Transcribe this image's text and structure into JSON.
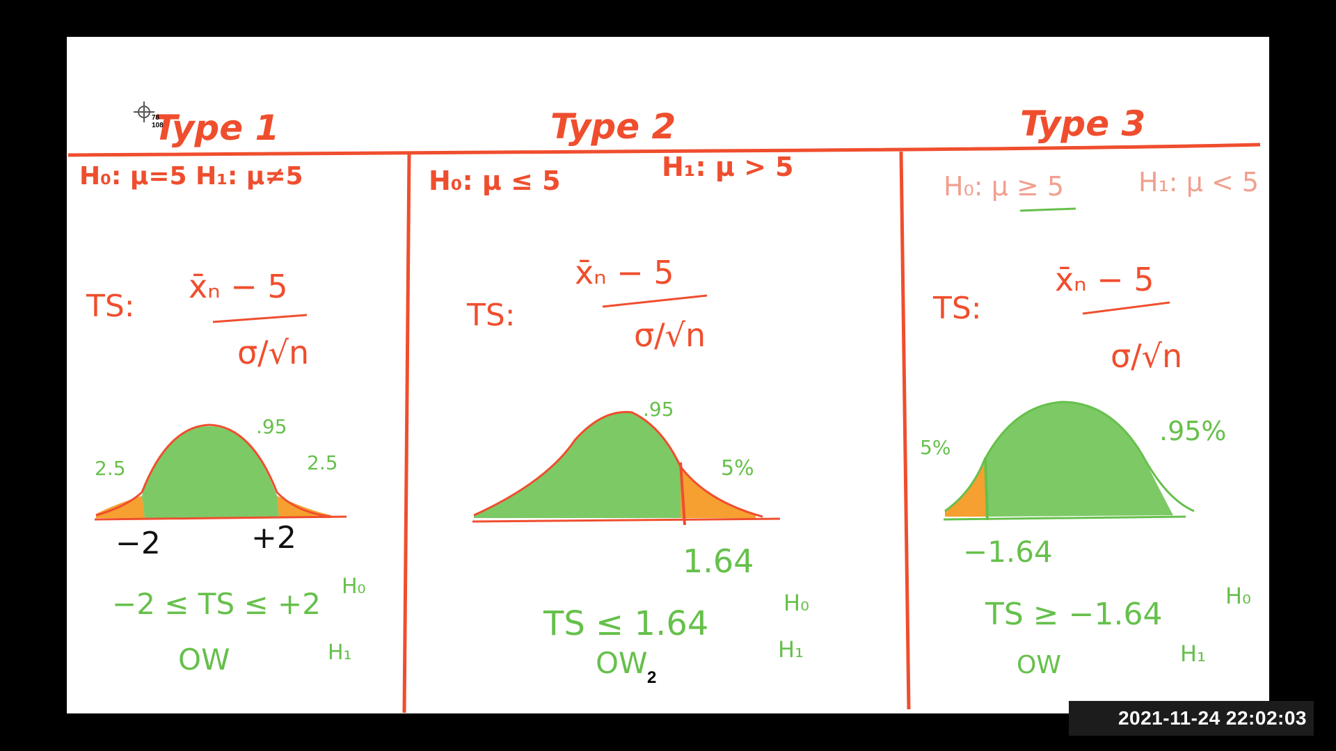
{
  "colors": {
    "ink_red": "#ef4e2e",
    "ink_green": "#66c04b",
    "fill_orange": "#f5a030",
    "ink_black": "#111111",
    "ink_faded": "#f0a090"
  },
  "cursor": {
    "readout_x": "78",
    "readout_y": "108",
    "icon": "crosshair-icon"
  },
  "columns": [
    {
      "title": "Type 1",
      "hypotheses": "H₀: μ=5  H₁: μ≠5",
      "test_statistic_label": "TS:",
      "numerator": "x̄ₙ − 5",
      "denominator": "σ/√n",
      "curve_labels": {
        "left_tail": "2.5",
        "center": ".95",
        "right_tail": "2.5"
      },
      "critical_values": [
        "−2",
        "+2"
      ],
      "decision": {
        "accept_rule": "−2 ≤ TS ≤ +2",
        "accept": "H₀",
        "otherwise": "OW",
        "reject": "H₁"
      }
    },
    {
      "title": "Type 2",
      "hypotheses_h0": "H₀: μ ≤ 5",
      "hypotheses_h1": "H₁: μ > 5",
      "test_statistic_label": "TS:",
      "numerator": "x̄ₙ − 5",
      "denominator": "σ/√n",
      "curve_labels": {
        "center": ".95",
        "right_tail": "5%"
      },
      "critical_values": [
        "1.64"
      ],
      "decision": {
        "accept_rule": "TS ≤ 1.64",
        "accept": "H₀",
        "otherwise": "OW",
        "reject": "H₁"
      }
    },
    {
      "title": "Type 3",
      "hypotheses_h0": "H₀: μ ≥ 5",
      "hypotheses_h1": "H₁: μ < 5",
      "test_statistic_label": "TS:",
      "numerator": "x̄ₙ − 5",
      "denominator": "σ/√n",
      "curve_labels": {
        "left_tail": "5%",
        "center": ".95%"
      },
      "critical_values": [
        "−1.64"
      ],
      "decision": {
        "accept_rule": "TS ≥ −1.64",
        "accept": "H₀",
        "otherwise": "OW",
        "reject": "H₁"
      }
    }
  ],
  "page_number": "2",
  "timestamp": "2021-11-24 22:02:03"
}
